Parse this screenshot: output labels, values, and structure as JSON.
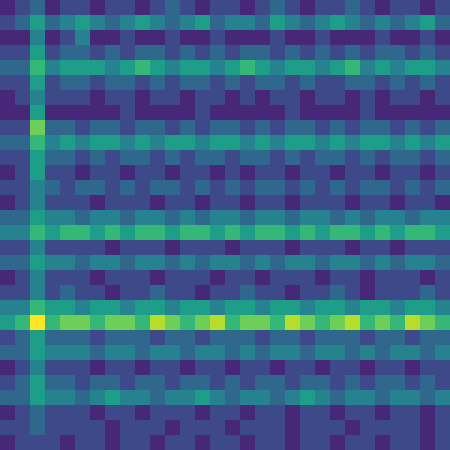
{
  "chart_data": {
    "type": "heatmap",
    "tick_labels": false,
    "color_range": [
      0,
      9
    ],
    "cells": [
      [
        1,
        2,
        3,
        1,
        2,
        2,
        1,
        2,
        2,
        1,
        2,
        3,
        2,
        1,
        2,
        2,
        1,
        2,
        3,
        2,
        1,
        2,
        2,
        3,
        2,
        1,
        2,
        2,
        1,
        2
      ],
      [
        2,
        3,
        5,
        3,
        4,
        5,
        4,
        3,
        4,
        5,
        4,
        3,
        4,
        5,
        3,
        4,
        4,
        3,
        5,
        4,
        3,
        4,
        5,
        4,
        3,
        4,
        3,
        4,
        5,
        3
      ],
      [
        1,
        1,
        4,
        1,
        2,
        4,
        1,
        1,
        2,
        1,
        1,
        2,
        1,
        1,
        2,
        1,
        1,
        1,
        2,
        1,
        1,
        2,
        1,
        1,
        1,
        2,
        1,
        1,
        2,
        1
      ],
      [
        2,
        2,
        5,
        2,
        3,
        3,
        2,
        3,
        2,
        3,
        3,
        2,
        3,
        2,
        3,
        2,
        3,
        3,
        2,
        3,
        2,
        3,
        2,
        3,
        2,
        3,
        3,
        2,
        3,
        2
      ],
      [
        3,
        3,
        6,
        4,
        5,
        5,
        5,
        4,
        5,
        6,
        5,
        4,
        5,
        5,
        4,
        5,
        6,
        5,
        4,
        5,
        5,
        4,
        5,
        6,
        4,
        5,
        4,
        5,
        5,
        4
      ],
      [
        2,
        2,
        5,
        2,
        3,
        3,
        2,
        3,
        3,
        2,
        3,
        2,
        3,
        3,
        2,
        3,
        2,
        3,
        3,
        2,
        3,
        2,
        2,
        3,
        3,
        2,
        3,
        2,
        3,
        2
      ],
      [
        1,
        2,
        4,
        2,
        2,
        2,
        1,
        2,
        2,
        1,
        2,
        2,
        1,
        2,
        2,
        1,
        2,
        1,
        2,
        2,
        1,
        2,
        2,
        1,
        2,
        1,
        2,
        2,
        1,
        2
      ],
      [
        1,
        1,
        5,
        1,
        1,
        1,
        1,
        1,
        2,
        1,
        1,
        1,
        1,
        2,
        1,
        1,
        1,
        1,
        1,
        2,
        1,
        1,
        1,
        1,
        2,
        1,
        1,
        1,
        1,
        1
      ],
      [
        2,
        2,
        7,
        3,
        3,
        2,
        3,
        3,
        2,
        3,
        3,
        2,
        3,
        2,
        3,
        3,
        2,
        3,
        2,
        3,
        3,
        2,
        3,
        2,
        3,
        3,
        2,
        3,
        2,
        3
      ],
      [
        3,
        3,
        6,
        4,
        5,
        4,
        5,
        5,
        4,
        5,
        4,
        5,
        5,
        4,
        5,
        5,
        4,
        5,
        4,
        5,
        5,
        4,
        5,
        4,
        5,
        5,
        4,
        5,
        4,
        5
      ],
      [
        2,
        2,
        5,
        3,
        3,
        2,
        3,
        2,
        3,
        3,
        2,
        3,
        2,
        3,
        3,
        2,
        3,
        3,
        2,
        3,
        2,
        3,
        3,
        2,
        3,
        2,
        3,
        3,
        2,
        3
      ],
      [
        1,
        2,
        5,
        2,
        2,
        1,
        2,
        2,
        1,
        2,
        2,
        1,
        2,
        2,
        1,
        2,
        1,
        2,
        2,
        1,
        2,
        2,
        1,
        2,
        2,
        1,
        2,
        2,
        1,
        2
      ],
      [
        2,
        2,
        4,
        3,
        2,
        3,
        3,
        2,
        3,
        2,
        3,
        3,
        2,
        3,
        2,
        3,
        2,
        3,
        3,
        2,
        3,
        2,
        3,
        2,
        3,
        3,
        2,
        3,
        2,
        3
      ],
      [
        1,
        2,
        4,
        2,
        2,
        2,
        1,
        2,
        2,
        2,
        1,
        2,
        2,
        1,
        2,
        2,
        1,
        2,
        2,
        1,
        2,
        2,
        2,
        1,
        2,
        2,
        1,
        2,
        2,
        1
      ],
      [
        3,
        3,
        5,
        4,
        4,
        3,
        4,
        4,
        3,
        4,
        4,
        3,
        4,
        3,
        4,
        4,
        3,
        4,
        4,
        3,
        4,
        4,
        3,
        4,
        3,
        4,
        4,
        3,
        4,
        4
      ],
      [
        4,
        4,
        6,
        5,
        6,
        6,
        5,
        6,
        5,
        6,
        6,
        5,
        6,
        6,
        5,
        6,
        5,
        6,
        6,
        5,
        6,
        5,
        6,
        6,
        5,
        6,
        5,
        6,
        6,
        5
      ],
      [
        2,
        2,
        4,
        2,
        2,
        2,
        2,
        1,
        2,
        2,
        2,
        1,
        2,
        2,
        2,
        1,
        2,
        2,
        2,
        1,
        2,
        2,
        2,
        1,
        2,
        2,
        1,
        2,
        2,
        2
      ],
      [
        3,
        3,
        5,
        4,
        4,
        3,
        4,
        4,
        3,
        4,
        4,
        3,
        4,
        3,
        4,
        4,
        3,
        4,
        3,
        4,
        4,
        3,
        4,
        4,
        3,
        4,
        3,
        4,
        4,
        3
      ],
      [
        1,
        2,
        4,
        2,
        2,
        2,
        1,
        2,
        2,
        2,
        1,
        2,
        2,
        2,
        1,
        2,
        2,
        1,
        2,
        2,
        2,
        1,
        2,
        2,
        1,
        2,
        2,
        2,
        1,
        2
      ],
      [
        2,
        2,
        4,
        2,
        3,
        2,
        2,
        1,
        2,
        2,
        3,
        2,
        2,
        1,
        2,
        2,
        3,
        2,
        2,
        1,
        2,
        2,
        3,
        2,
        1,
        2,
        2,
        2,
        3,
        2
      ],
      [
        4,
        4,
        6,
        5,
        5,
        4,
        5,
        5,
        4,
        5,
        5,
        4,
        5,
        5,
        4,
        5,
        5,
        4,
        5,
        5,
        4,
        5,
        5,
        4,
        5,
        5,
        4,
        5,
        5,
        4
      ],
      [
        5,
        6,
        9,
        6,
        7,
        7,
        6,
        7,
        7,
        6,
        8,
        7,
        6,
        7,
        8,
        6,
        7,
        7,
        6,
        8,
        7,
        6,
        7,
        8,
        6,
        7,
        6,
        8,
        7,
        6
      ],
      [
        2,
        3,
        5,
        3,
        3,
        3,
        2,
        3,
        3,
        3,
        2,
        3,
        3,
        2,
        3,
        3,
        3,
        2,
        3,
        3,
        2,
        3,
        3,
        3,
        2,
        3,
        3,
        2,
        3,
        3
      ],
      [
        3,
        3,
        5,
        4,
        4,
        4,
        3,
        4,
        4,
        3,
        4,
        4,
        3,
        4,
        4,
        3,
        4,
        3,
        4,
        4,
        3,
        4,
        4,
        3,
        4,
        3,
        4,
        4,
        3,
        4
      ],
      [
        1,
        2,
        4,
        2,
        2,
        2,
        1,
        2,
        2,
        1,
        2,
        2,
        1,
        2,
        2,
        1,
        2,
        2,
        1,
        2,
        2,
        1,
        2,
        2,
        1,
        2,
        2,
        1,
        2,
        2
      ],
      [
        2,
        3,
        5,
        3,
        3,
        2,
        3,
        3,
        2,
        3,
        3,
        2,
        3,
        3,
        2,
        3,
        2,
        3,
        3,
        2,
        3,
        3,
        2,
        3,
        2,
        3,
        3,
        2,
        3,
        2
      ],
      [
        3,
        3,
        5,
        4,
        4,
        3,
        4,
        5,
        4,
        4,
        3,
        4,
        4,
        5,
        4,
        3,
        4,
        4,
        3,
        4,
        5,
        4,
        3,
        4,
        4,
        3,
        4,
        4,
        3,
        4
      ],
      [
        1,
        2,
        3,
        2,
        2,
        2,
        1,
        2,
        2,
        1,
        2,
        2,
        2,
        1,
        2,
        2,
        1,
        2,
        2,
        1,
        2,
        2,
        1,
        2,
        2,
        1,
        2,
        2,
        1,
        2
      ],
      [
        2,
        2,
        3,
        2,
        2,
        2,
        2,
        1,
        2,
        2,
        2,
        1,
        2,
        2,
        2,
        1,
        2,
        2,
        2,
        1,
        2,
        2,
        2,
        1,
        2,
        2,
        2,
        2,
        1,
        2
      ],
      [
        1,
        2,
        2,
        2,
        1,
        2,
        2,
        1,
        2,
        2,
        1,
        2,
        2,
        1,
        2,
        2,
        1,
        2,
        2,
        1,
        2,
        2,
        1,
        2,
        2,
        1,
        2,
        2,
        1,
        2
      ]
    ]
  }
}
